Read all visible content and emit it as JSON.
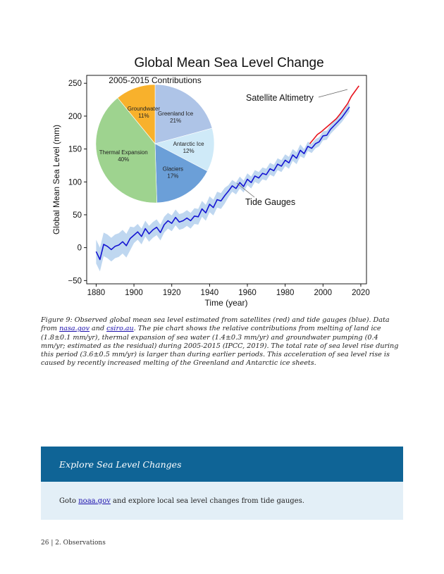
{
  "chart_data": {
    "type": "line",
    "title": "Global Mean Sea Level Change",
    "xlabel": "Time (year)",
    "ylabel": "Global Mean Sea Level (mm)",
    "xlim": [
      1875,
      2023
    ],
    "ylim": [
      -55,
      262
    ],
    "xticks": [
      1880,
      1900,
      1920,
      1940,
      1960,
      1980,
      2000,
      2020
    ],
    "yticks": [
      -50,
      0,
      50,
      100,
      150,
      200,
      250
    ],
    "grid": false,
    "annotations": [
      "Satellite Altimetry",
      "Tide Gauges"
    ],
    "series": [
      {
        "name": "Tide Gauges",
        "color": "#1414d2",
        "band_color": "#b8d3ee",
        "x": [
          1880,
          1882,
          1884,
          1886,
          1888,
          1890,
          1892,
          1894,
          1896,
          1898,
          1900,
          1902,
          1904,
          1906,
          1908,
          1910,
          1912,
          1914,
          1916,
          1918,
          1920,
          1922,
          1924,
          1926,
          1928,
          1930,
          1932,
          1934,
          1936,
          1938,
          1940,
          1942,
          1944,
          1946,
          1948,
          1950,
          1952,
          1954,
          1956,
          1958,
          1960,
          1962,
          1964,
          1966,
          1968,
          1970,
          1972,
          1974,
          1976,
          1978,
          1980,
          1982,
          1984,
          1986,
          1988,
          1990,
          1992,
          1994,
          1996,
          1998,
          2000,
          2002,
          2004,
          2006,
          2008,
          2010,
          2012,
          2014
        ],
        "y": [
          -6,
          -18,
          5,
          2,
          -3,
          2,
          4,
          9,
          3,
          14,
          19,
          24,
          17,
          29,
          21,
          27,
          31,
          23,
          35,
          41,
          37,
          46,
          39,
          41,
          45,
          41,
          48,
          47,
          59,
          53,
          66,
          61,
          73,
          71,
          79,
          86,
          94,
          90,
          99,
          93,
          104,
          99,
          109,
          106,
          113,
          111,
          120,
          117,
          127,
          124,
          133,
          129,
          141,
          136,
          148,
          143,
          154,
          151,
          158,
          161,
          170,
          171,
          180,
          186,
          192,
          198,
          206,
          214
        ]
      },
      {
        "name": "Satellite Altimetry",
        "color": "#e8141e",
        "x": [
          1993,
          1995,
          1997,
          1999,
          2001,
          2003,
          2005,
          2007,
          2009,
          2011,
          2013,
          2015,
          2017,
          2019
        ],
        "y": [
          158,
          165,
          172,
          176,
          181,
          186,
          191,
          196,
          203,
          211,
          219,
          230,
          238,
          246
        ]
      }
    ],
    "pie": {
      "title": "2005-2015 Contributions",
      "slices": [
        {
          "label": "Greenland Ice",
          "percent": 21,
          "color": "#aec4e7"
        },
        {
          "label": "Antarctic Ice",
          "percent": 12,
          "color": "#cfeaf8"
        },
        {
          "label": "Glaciers",
          "percent": 17,
          "color": "#6b9fd8"
        },
        {
          "label": "Thermal Expansion",
          "percent": 40,
          "color": "#9ed38f"
        },
        {
          "label": "Groundwater",
          "percent": 11,
          "color": "#f8b12c"
        }
      ]
    }
  },
  "caption": {
    "p1": "Figure 9: Observed global mean sea level estimated from satellites (red) and tide gauges (blue). Data from ",
    "link1": "nasa.gov",
    "p2": " and ",
    "link2": "csiro.au",
    "p3": ". The pie chart shows the relative contributions from melting of land ice (1.8±0.1 mm/yr), thermal expansion of sea water (1.4±0.3 mm/yr) and groundwater pumping (0.4 mm/yr; estimated as the residual) during 2005-2015 (IPCC, 2019). The total rate of sea level rise during this period (3.6±0.5 mm/yr) is larger than during earlier periods. This acceleration of sea level rise is caused by recently increased melting of the Greenland and Antarctic ice sheets."
  },
  "callout": {
    "title": "Explore Sea Level Changes",
    "body_pre": "Goto ",
    "link": "noaa.gov",
    "body_post": " and explore local sea level changes from tide gauges."
  },
  "footer": "26  |  2. Observations"
}
